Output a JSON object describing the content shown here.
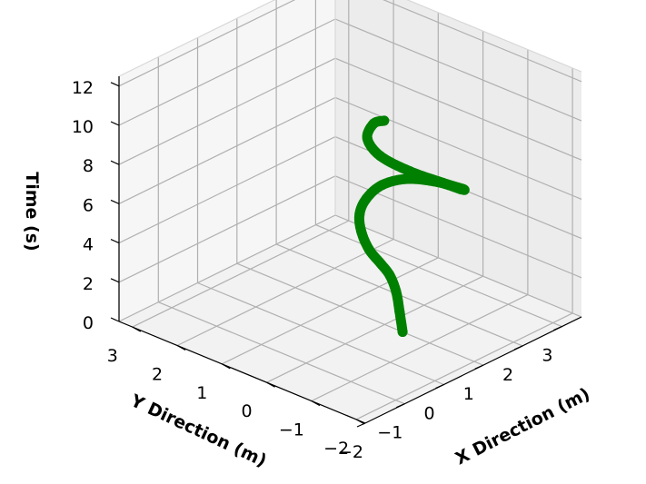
{
  "chart_data": {
    "type": "scatter",
    "projection": "3d",
    "title": "",
    "xlabel": "X Direction (m)",
    "ylabel": "Y Direction (m)",
    "zlabel": "Time (s)",
    "xlim": [
      -2,
      3.5
    ],
    "ylim": [
      -2.2,
      3.3
    ],
    "zlim": [
      0,
      12.5
    ],
    "xticks": [
      "−2",
      "−1",
      "0",
      "1",
      "2",
      "3"
    ],
    "yticks": [
      "−2",
      "−1",
      "0",
      "1",
      "2",
      "3"
    ],
    "zticks": [
      "0",
      "2",
      "4",
      "6",
      "8",
      "10",
      "12"
    ],
    "grid": true,
    "series": [
      {
        "color": "#008000",
        "points": [
          {
            "x": 1.0,
            "y": -0.4,
            "t": 0.0
          },
          {
            "x": 0.98,
            "y": -0.35,
            "t": 1.0
          },
          {
            "x": 0.95,
            "y": -0.3,
            "t": 2.0
          },
          {
            "x": 0.9,
            "y": -0.2,
            "t": 2.8
          },
          {
            "x": 0.9,
            "y": 0.0,
            "t": 3.2
          },
          {
            "x": 1.0,
            "y": 0.35,
            "t": 3.5
          },
          {
            "x": 1.2,
            "y": 0.7,
            "t": 3.9
          },
          {
            "x": 1.5,
            "y": 1.0,
            "t": 4.2
          },
          {
            "x": 1.9,
            "y": 1.2,
            "t": 4.4
          },
          {
            "x": 2.3,
            "y": 1.2,
            "t": 4.7
          },
          {
            "x": 2.6,
            "y": 0.9,
            "t": 5.0
          },
          {
            "x": 2.7,
            "y": 0.3,
            "t": 5.3
          },
          {
            "x": 2.6,
            "y": -0.3,
            "t": 5.6
          },
          {
            "x": 2.3,
            "y": -0.6,
            "t": 6.2
          },
          {
            "x": 1.8,
            "y": -0.6,
            "t": 7.0
          },
          {
            "x": 1.3,
            "y": -0.3,
            "t": 7.8
          },
          {
            "x": 1.0,
            "y": 0.1,
            "t": 8.5
          },
          {
            "x": 0.9,
            "y": 0.3,
            "t": 9.3
          },
          {
            "x": 1.0,
            "y": 0.25,
            "t": 10.0
          },
          {
            "x": 1.1,
            "y": 0.1,
            "t": 10.2
          }
        ]
      }
    ]
  }
}
